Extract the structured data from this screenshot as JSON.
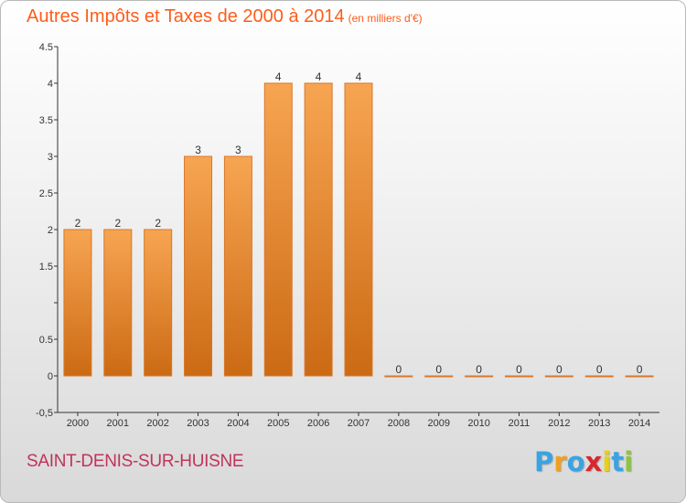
{
  "header": {
    "title": "Autres Impôts et Taxes de 2000 à 2014",
    "subtitle": "(en milliers d'€)"
  },
  "footer": {
    "commune": "SAINT-DENIS-SUR-HUISNE",
    "logo_text": "Proxiti",
    "logo_colors": [
      "#3aa3e3",
      "#f0a020",
      "#3aa3e3",
      "#d8262e",
      "#e8cf1a",
      "#3aa3e3",
      "#8cc63f"
    ]
  },
  "colors": {
    "bar_top": "#f7a552",
    "bar_bottom": "#cc6a14",
    "bar_border": "#d9772a",
    "title": "#ff5c1a",
    "commune": "#c0345b"
  },
  "chart_data": {
    "type": "bar",
    "title": "Autres Impôts et Taxes de 2000 à 2014",
    "subtitle": "(en milliers d'€)",
    "categories": [
      "2000",
      "2001",
      "2002",
      "2003",
      "2004",
      "2005",
      "2006",
      "2007",
      "2008",
      "2009",
      "2010",
      "2011",
      "2012",
      "2013",
      "2014"
    ],
    "values": [
      2,
      2,
      2,
      3,
      3,
      4,
      4,
      4,
      0,
      0,
      0,
      0,
      0,
      0,
      0
    ],
    "data_labels": [
      "2",
      "2",
      "2",
      "3",
      "3",
      "4",
      "4",
      "4",
      "0",
      "0",
      "0",
      "0",
      "0",
      "0",
      "0"
    ],
    "ylim": [
      -0.5,
      4.5
    ],
    "yticks": [
      -0.5,
      0,
      0.5,
      1,
      1.5,
      2,
      2.5,
      3,
      3.5,
      4,
      4.5
    ],
    "ytick_labels": [
      "-0,5",
      "0",
      "0.5",
      "",
      "1.5",
      "2",
      "2.5",
      "3",
      "3.5",
      "4",
      "4.5"
    ],
    "xlabel": "",
    "ylabel": "",
    "grid": false,
    "legend": "none"
  }
}
